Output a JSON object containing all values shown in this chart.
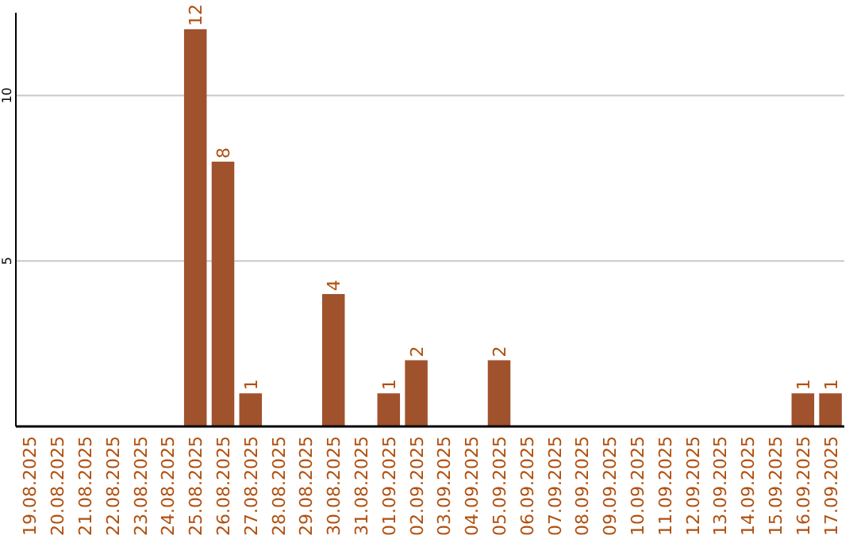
{
  "chart_data": {
    "type": "bar",
    "categories": [
      "19.08.2025",
      "20.08.2025",
      "21.08.2025",
      "22.08.2025",
      "23.08.2025",
      "24.08.2025",
      "25.08.2025",
      "26.08.2025",
      "27.08.2025",
      "28.08.2025",
      "29.08.2025",
      "30.08.2025",
      "31.08.2025",
      "01.09.2025",
      "02.09.2025",
      "03.09.2025",
      "04.09.2025",
      "05.09.2025",
      "06.09.2025",
      "07.09.2025",
      "08.09.2025",
      "09.09.2025",
      "10.09.2025",
      "11.09.2025",
      "12.09.2025",
      "13.09.2025",
      "14.09.2025",
      "15.09.2025",
      "16.09.2025",
      "17.09.2025"
    ],
    "values": [
      0,
      0,
      0,
      0,
      0,
      0,
      12,
      8,
      1,
      0,
      0,
      4,
      0,
      1,
      2,
      0,
      0,
      2,
      0,
      0,
      0,
      0,
      0,
      0,
      0,
      0,
      0,
      0,
      1,
      1
    ],
    "value_labels": [
      null,
      null,
      null,
      null,
      null,
      null,
      "12",
      "8",
      "1",
      null,
      null,
      "4",
      null,
      "1",
      "2",
      null,
      null,
      "2",
      null,
      null,
      null,
      null,
      null,
      null,
      null,
      null,
      null,
      null,
      "1",
      "1"
    ],
    "color": "#a0522d",
    "ylim": [
      0,
      12.5
    ],
    "yticks": [
      5,
      10
    ],
    "grid": "y"
  }
}
